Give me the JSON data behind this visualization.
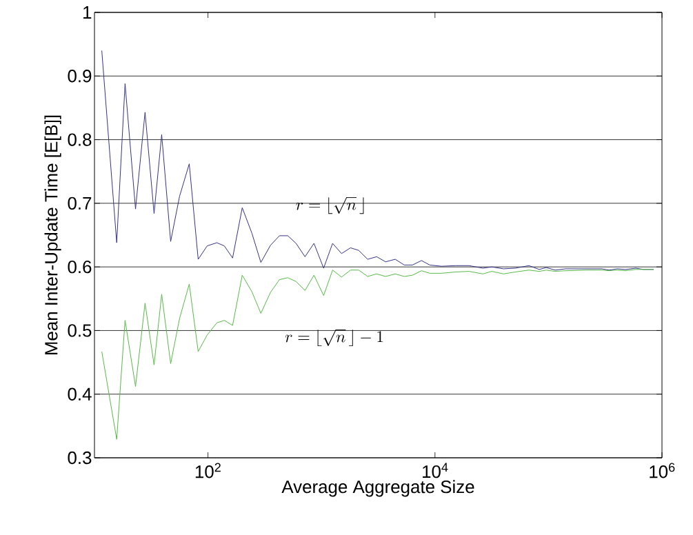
{
  "chart_data": {
    "type": "line",
    "xlabel": "Average Aggregate Size",
    "ylabel": "Mean Inter-Update Time [E[B]]",
    "x": [
      11.6,
      15.7,
      18.6,
      23.0,
      27.9,
      33.5,
      39.1,
      46.9,
      56.2,
      68.4,
      82.0,
      98.4,
      119.7,
      139.3,
      164.8,
      200.4,
      243.8,
      292.4,
      355.6,
      426.6,
      504.7,
      597.0,
      716.1,
      859.0,
      1044.8,
      1253,
      1503,
      1803,
      2128,
      2553,
      3062,
      3673,
      4467,
      5358,
      6339,
      7603,
      8995,
      11402,
      15100,
      19950,
      26420,
      31620,
      40180,
      50930,
      67300,
      82990,
      95500,
      114600,
      141300,
      214800,
      296500,
      341200,
      402700,
      476400,
      587500,
      685500,
      845300
    ],
    "series": [
      {
        "color": "#333388",
        "values": [
          0.94,
          0.638,
          0.888,
          0.691,
          0.843,
          0.684,
          0.808,
          0.64,
          0.711,
          0.762,
          0.612,
          0.633,
          0.638,
          0.633,
          0.614,
          0.693,
          0.653,
          0.607,
          0.634,
          0.649,
          0.649,
          0.637,
          0.616,
          0.637,
          0.598,
          0.637,
          0.621,
          0.63,
          0.626,
          0.612,
          0.616,
          0.608,
          0.612,
          0.603,
          0.603,
          0.61,
          0.603,
          0.601,
          0.602,
          0.602,
          0.598,
          0.6,
          0.597,
          0.598,
          0.602,
          0.596,
          0.599,
          0.595,
          0.597,
          0.597,
          0.597,
          0.595,
          0.597,
          0.596,
          0.598,
          0.596,
          0.596
        ]
      },
      {
        "color": "#55bb44",
        "values": [
          0.467,
          0.329,
          0.516,
          0.412,
          0.543,
          0.446,
          0.557,
          0.448,
          0.519,
          0.573,
          0.467,
          0.493,
          0.512,
          0.516,
          0.508,
          0.587,
          0.561,
          0.527,
          0.56,
          0.58,
          0.583,
          0.577,
          0.563,
          0.587,
          0.555,
          0.595,
          0.584,
          0.595,
          0.595,
          0.585,
          0.589,
          0.585,
          0.589,
          0.585,
          0.587,
          0.594,
          0.59,
          0.59,
          0.592,
          0.593,
          0.589,
          0.593,
          0.589,
          0.592,
          0.595,
          0.593,
          0.595,
          0.593,
          0.594,
          0.595,
          0.595,
          0.594,
          0.595,
          0.594,
          0.596,
          0.596,
          0.596
        ]
      }
    ],
    "log": "x",
    "xlim": [
      10,
      1000000
    ],
    "xticks": [
      {
        "value": 100,
        "label": "10$^{2}$"
      },
      {
        "value": 10000,
        "label": "10$^{4}$"
      },
      {
        "value": 1000000,
        "label": "10$^{6}$"
      }
    ],
    "ylim": [
      0.3,
      1
    ],
    "yticks": [
      0.3,
      0.4,
      0.5,
      0.6,
      0.7,
      0.8,
      0.9,
      1
    ],
    "grid": "y",
    "marker": "none",
    "line_style": "solid",
    "annotations": [
      "r=\\left\\lfloor\\sqrt{n}\\,\\right\\rfloor",
      "r=\\left\\lfloor\\sqrt{n}\\,\\right\\rfloor-1"
    ]
  }
}
